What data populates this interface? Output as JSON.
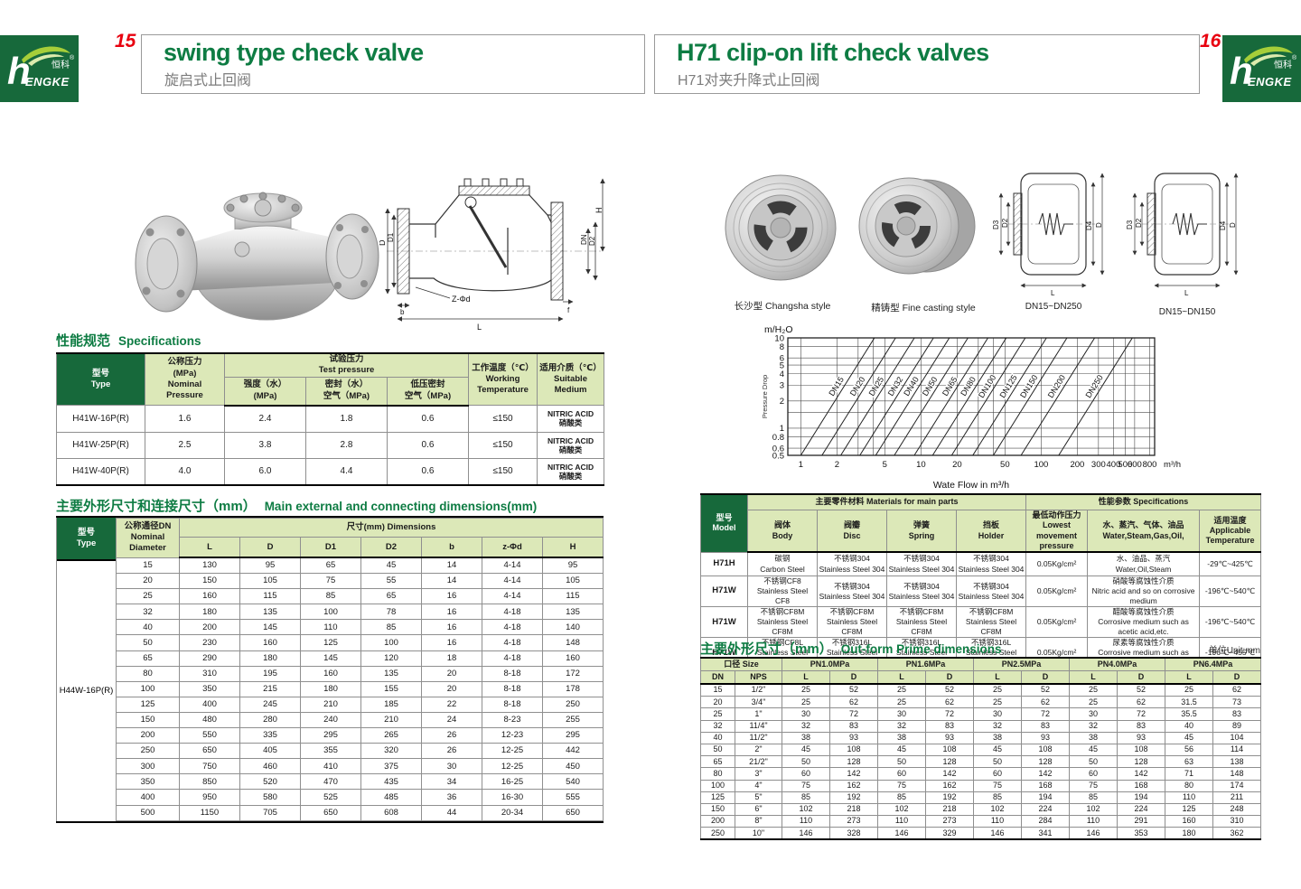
{
  "brand": {
    "h": "h",
    "engke": "ENGKE",
    "zh": "恒科",
    "reg": "®"
  },
  "left": {
    "page_no": "15",
    "title_en": "swing type check valve",
    "title_zh": "旋启式止回阀",
    "drawing_labels": {
      "D": "D",
      "D1": "D1",
      "DN": "DN",
      "D2": "D2",
      "H": "H",
      "L": "L",
      "b": "b",
      "f": "f",
      "zphid": "Z-Φd"
    },
    "spec": {
      "title_zh": "性能规范",
      "title_en": "Specifications",
      "h_type": "型号\nType",
      "h_nominal": "公称压力\n(MPa)\nNominal\nPressure",
      "h_test": "试验压力\nTest pressure",
      "h_strength": "强度（水）\n(MPa)",
      "h_seal": "密封（水）\n空气（MPa)",
      "h_lowseal": "低压密封\n空气（MPa)",
      "h_working": "工作温度（℃）\nWorking\nTemperature",
      "h_medium": "适用介质（℃）\nSuitable\nMedium",
      "rows": [
        {
          "type": "H41W-16P(R)",
          "nominal": "1.6",
          "strength": "2.4",
          "seal": "1.8",
          "low": "0.6",
          "temp": "≤150",
          "medium": "NITRIC ACID\n硝酸类"
        },
        {
          "type": "H41W-25P(R)",
          "nominal": "2.5",
          "strength": "3.8",
          "seal": "2.8",
          "low": "0.6",
          "temp": "≤150",
          "medium": "NITRIC ACID\n硝酸类"
        },
        {
          "type": "H41W-40P(R)",
          "nominal": "4.0",
          "strength": "6.0",
          "seal": "4.4",
          "low": "0.6",
          "temp": "≤150",
          "medium": "NITRIC ACID\n硝酸类"
        }
      ]
    },
    "dims": {
      "title_zh": "主要外形尺寸和连接尺寸（mm）",
      "title_en": "Main external and connecting dimensions(mm)",
      "h_type": "型号\nType",
      "h_dn": "公称通径DN\nNominal\nDiameter",
      "h_dims": "尺寸(mm) Dimensions",
      "cols": [
        "L",
        "D",
        "D1",
        "D2",
        "b",
        "z-Φd",
        "H"
      ],
      "type_label": "H44W-16P(R)",
      "rows": [
        [
          "15",
          "130",
          "95",
          "65",
          "45",
          "14",
          "4-14",
          "95"
        ],
        [
          "20",
          "150",
          "105",
          "75",
          "55",
          "14",
          "4-14",
          "105"
        ],
        [
          "25",
          "160",
          "115",
          "85",
          "65",
          "16",
          "4-14",
          "115"
        ],
        [
          "32",
          "180",
          "135",
          "100",
          "78",
          "16",
          "4-18",
          "135"
        ],
        [
          "40",
          "200",
          "145",
          "110",
          "85",
          "16",
          "4-18",
          "140"
        ],
        [
          "50",
          "230",
          "160",
          "125",
          "100",
          "16",
          "4-18",
          "148"
        ],
        [
          "65",
          "290",
          "180",
          "145",
          "120",
          "18",
          "4-18",
          "160"
        ],
        [
          "80",
          "310",
          "195",
          "160",
          "135",
          "20",
          "8-18",
          "172"
        ],
        [
          "100",
          "350",
          "215",
          "180",
          "155",
          "20",
          "8-18",
          "178"
        ],
        [
          "125",
          "400",
          "245",
          "210",
          "185",
          "22",
          "8-18",
          "250"
        ],
        [
          "150",
          "480",
          "280",
          "240",
          "210",
          "24",
          "8-23",
          "255"
        ],
        [
          "200",
          "550",
          "335",
          "295",
          "265",
          "26",
          "12-23",
          "295"
        ],
        [
          "250",
          "650",
          "405",
          "355",
          "320",
          "26",
          "12-25",
          "442"
        ],
        [
          "300",
          "750",
          "460",
          "410",
          "375",
          "30",
          "12-25",
          "450"
        ],
        [
          "350",
          "850",
          "520",
          "470",
          "435",
          "34",
          "16-25",
          "540"
        ],
        [
          "400",
          "950",
          "580",
          "525",
          "485",
          "36",
          "16-30",
          "555"
        ],
        [
          "500",
          "1150",
          "705",
          "650",
          "608",
          "44",
          "20-34",
          "650"
        ]
      ]
    }
  },
  "right": {
    "page_no": "16",
    "title_en": "H71 clip-on lift check valves",
    "title_zh": "H71对夹升降式止回阀",
    "photo_captions": [
      "长沙型 Changsha style",
      "精铸型 Fine casting style"
    ],
    "drawing_captions": [
      "DN15~DN250",
      "DN15~DN150"
    ],
    "drawing_labels": {
      "D3": "D3",
      "D2": "D2",
      "D4": "D4",
      "D": "D",
      "L": "L"
    },
    "materials": {
      "h_model": "型号\nModel",
      "h_materials": "主要零件材料 Materials for main parts",
      "h_specs": "性能参数 Specifications",
      "h_body": "阀体\nBody",
      "h_disc": "阀瓣\nDisc",
      "h_spring": "弹簧\nSpring",
      "h_holder": "挡板\nHolder",
      "h_pressure": "最低动作压力\nLowest movement\npressure",
      "h_media": "水、蒸汽、气体、油品\nWater,Steam,Gas,Oil,",
      "h_temp": "适用温度\nApplicable\nTemperature",
      "rows": [
        {
          "model": "H71H",
          "body": "碳钢\nCarbon Steel",
          "disc": "不锈钢304\nStainless Steel 304",
          "spring": "不锈钢304\nStainless Steel 304",
          "holder": "不锈钢304\nStainless Steel 304",
          "pressure": "0.05Kg/cm²",
          "media": "水、油品、蒸汽\nWater,Oil,Steam",
          "temp": "-29℃~425℃"
        },
        {
          "model": "H71W",
          "body": "不锈钢CF8\nStainless Steel CF8",
          "disc": "不锈钢304\nStainless Steel 304",
          "spring": "不锈钢304\nStainless Steel 304",
          "holder": "不锈钢304\nStainless Steel 304",
          "pressure": "0.05Kg/cm²",
          "media": "硝酸等腐蚀性介质\nNitric acid and so on corrosive medium",
          "temp": "-196℃~540℃"
        },
        {
          "model": "H71W",
          "body": "不锈钢CF8M\nStainless Steel CF8M",
          "disc": "不锈钢CF8M\nStainless Steel CF8M",
          "spring": "不锈钢CF8M\nStainless Steel CF8M",
          "holder": "不锈钢CF8M\nStainless Steel CF8M",
          "pressure": "0.05Kg/cm²",
          "media": "醋酸等腐蚀性介质\nCorrosive medium such as acetic acid,etc.",
          "temp": "-196℃~540℃"
        },
        {
          "model": "H71W",
          "body": "不锈钢CF8L\nStainless Steel CF8L",
          "disc": "不锈钢316L\nStainless Steel 316L",
          "spring": "不锈钢316L\nStainless Steel 316L",
          "holder": "不锈钢316L\nStainless Steel 316L",
          "pressure": "0.05Kg/cm²",
          "media": "尿素等腐蚀性介质\nCorrosive medium such as urea,etc.",
          "temp": "-196℃~455℃"
        }
      ]
    },
    "outform": {
      "title_zh": "主要外形尺寸（mm）",
      "title_en": "Out-form Prime dimensions",
      "unit": "单位Unit:mm",
      "h_size": "口径 Size",
      "h_dn": "DN",
      "h_nps": "NPS",
      "h_l": "L",
      "h_d": "D",
      "classes": [
        "PN1.0MPa",
        "PN1.6MPa",
        "PN2.5MPa",
        "PN4.0MPa",
        "PN6.4MPa"
      ],
      "rows": [
        [
          "15",
          "1/2\"",
          "25",
          "52",
          "25",
          "52",
          "25",
          "52",
          "25",
          "52",
          "25",
          "62"
        ],
        [
          "20",
          "3/4\"",
          "25",
          "62",
          "25",
          "62",
          "25",
          "62",
          "25",
          "62",
          "31.5",
          "73"
        ],
        [
          "25",
          "1\"",
          "30",
          "72",
          "30",
          "72",
          "30",
          "72",
          "30",
          "72",
          "35.5",
          "83"
        ],
        [
          "32",
          "11/4\"",
          "32",
          "83",
          "32",
          "83",
          "32",
          "83",
          "32",
          "83",
          "40",
          "89"
        ],
        [
          "40",
          "11/2\"",
          "38",
          "93",
          "38",
          "93",
          "38",
          "93",
          "38",
          "93",
          "45",
          "104"
        ],
        [
          "50",
          "2\"",
          "45",
          "108",
          "45",
          "108",
          "45",
          "108",
          "45",
          "108",
          "56",
          "114"
        ],
        [
          "65",
          "21/2\"",
          "50",
          "128",
          "50",
          "128",
          "50",
          "128",
          "50",
          "128",
          "63",
          "138"
        ],
        [
          "80",
          "3\"",
          "60",
          "142",
          "60",
          "142",
          "60",
          "142",
          "60",
          "142",
          "71",
          "148"
        ],
        [
          "100",
          "4\"",
          "75",
          "162",
          "75",
          "162",
          "75",
          "168",
          "75",
          "168",
          "80",
          "174"
        ],
        [
          "125",
          "5\"",
          "85",
          "192",
          "85",
          "192",
          "85",
          "194",
          "85",
          "194",
          "110",
          "211"
        ],
        [
          "150",
          "6\"",
          "102",
          "218",
          "102",
          "218",
          "102",
          "224",
          "102",
          "224",
          "125",
          "248"
        ],
        [
          "200",
          "8\"",
          "110",
          "273",
          "110",
          "273",
          "110",
          "284",
          "110",
          "291",
          "160",
          "310"
        ],
        [
          "250",
          "10\"",
          "146",
          "328",
          "146",
          "329",
          "146",
          "341",
          "146",
          "353",
          "180",
          "362"
        ]
      ]
    }
  },
  "chart_data": {
    "type": "line",
    "title": "",
    "y_unit_label": "m/H₂O",
    "ylabel": "Pressure Drop",
    "xlabel": "Wate Flow in m³/h",
    "x_unit_label": "m³/h",
    "xlim": [
      0.78,
      880
    ],
    "ylim": [
      0.5,
      10
    ],
    "x_ticks": [
      1,
      2,
      5,
      10,
      20,
      50,
      100,
      200,
      300,
      400,
      500,
      600,
      800
    ],
    "x_grid": [
      1,
      2,
      3,
      4,
      5,
      10,
      20,
      30,
      40,
      50,
      100,
      200,
      300,
      400,
      500,
      600,
      800
    ],
    "y_ticks": [
      10,
      8,
      6,
      5,
      4,
      3,
      2,
      1,
      0.8,
      0.6,
      0.5
    ],
    "y_grid": [
      0.5,
      0.6,
      0.8,
      1,
      1.5,
      2,
      3,
      4,
      5,
      6,
      8,
      10
    ],
    "slope_ratio": 4.1,
    "label_y": 2.8,
    "lines": [
      {
        "label": "DN15",
        "x_at_ymin": 1.0
      },
      {
        "label": "DN20",
        "x_at_ymin": 1.5
      },
      {
        "label": "DN25",
        "x_at_ymin": 2.15
      },
      {
        "label": "DN32",
        "x_at_ymin": 3.1
      },
      {
        "label": "DN40",
        "x_at_ymin": 4.2
      },
      {
        "label": "DN50",
        "x_at_ymin": 6.0
      },
      {
        "label": "DN65",
        "x_at_ymin": 8.8
      },
      {
        "label": "DN80",
        "x_at_ymin": 12.5
      },
      {
        "label": "DN100",
        "x_at_ymin": 18
      },
      {
        "label": "DN125",
        "x_at_ymin": 27
      },
      {
        "label": "DN150",
        "x_at_ymin": 40
      },
      {
        "label": "DN200",
        "x_at_ymin": 68
      },
      {
        "label": "DN250",
        "x_at_ymin": 140
      }
    ]
  }
}
